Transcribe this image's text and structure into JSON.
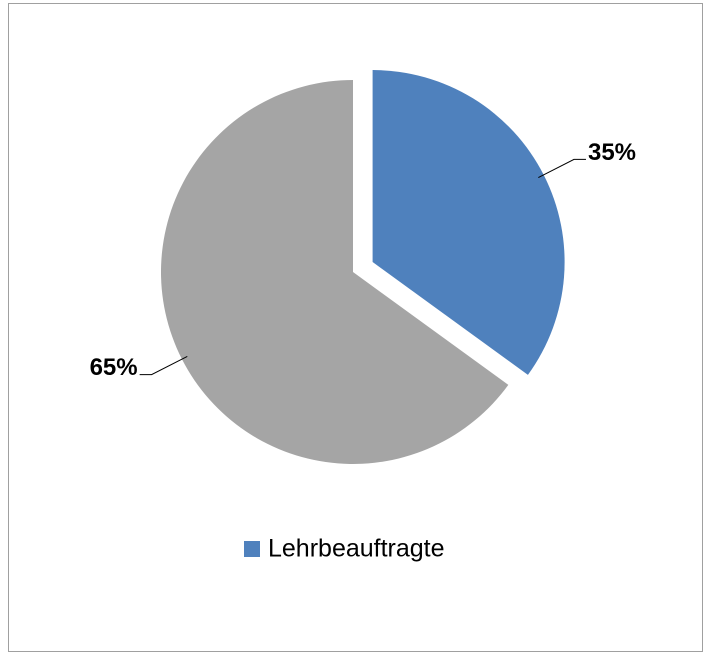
{
  "chart_data": {
    "type": "pie",
    "categories": [
      "Lehrbeauftragte",
      null
    ],
    "values": [
      35,
      65
    ],
    "value_labels": [
      "35%",
      "65%"
    ],
    "colors": [
      "#4f81bd",
      "#a5a5a5"
    ],
    "exploded": [
      true,
      false
    ],
    "legend": "bottom"
  }
}
